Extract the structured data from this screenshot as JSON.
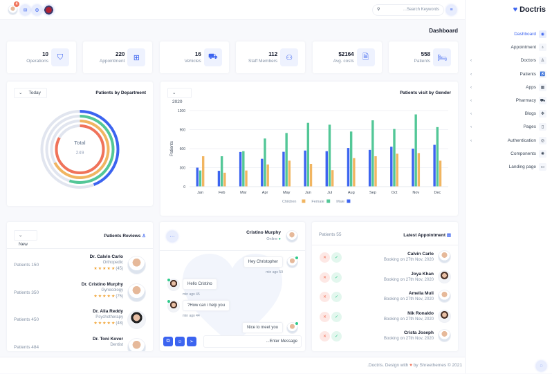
{
  "topbar": {
    "notification_count": "4",
    "search_placeholder": "...Search Keywords"
  },
  "brand": {
    "name": "Doctris"
  },
  "sidebar": {
    "items": [
      {
        "label": "Dashboard",
        "icon": "dashboard-icon",
        "glyph": "◉",
        "active": true,
        "chevron": false
      },
      {
        "label": "Appointment",
        "icon": "stethoscope-icon",
        "glyph": "♁",
        "chevron": false
      },
      {
        "label": "Doctors",
        "icon": "user-icon",
        "glyph": "♙",
        "chevron": true
      },
      {
        "label": "Patients",
        "icon": "wheelchair-icon",
        "glyph": "♿",
        "chevron": true
      },
      {
        "label": "Apps",
        "icon": "apps-icon",
        "glyph": "▦",
        "chevron": true
      },
      {
        "label": "Pharmacy",
        "icon": "cart-icon",
        "glyph": "⛟",
        "chevron": true
      },
      {
        "label": "Blogs",
        "icon": "flower-icon",
        "glyph": "✥",
        "chevron": true
      },
      {
        "label": "Pages",
        "icon": "file-icon",
        "glyph": "▯",
        "chevron": true
      },
      {
        "label": "Authentication",
        "icon": "login-icon",
        "glyph": "◎",
        "chevron": true
      },
      {
        "label": "Components",
        "icon": "settings-icon",
        "glyph": "✺",
        "chevron": false
      },
      {
        "label": "Landing page",
        "icon": "browser-icon",
        "glyph": "▭",
        "chevron": false
      }
    ]
  },
  "page_title": "Dashboard",
  "stats": [
    {
      "value": "10",
      "label": "Operations",
      "icon": "tooth-icon",
      "glyph": "⛉"
    },
    {
      "value": "220",
      "label": "Appointment",
      "icon": "medical-kit-icon",
      "glyph": "⊞"
    },
    {
      "value": "16",
      "label": "Vehicles",
      "icon": "ambulance-icon",
      "glyph": "⛟"
    },
    {
      "value": "112",
      "label": "Staff Members",
      "icon": "users-icon",
      "glyph": "⚇"
    },
    {
      "value": "$2164",
      "label": "Avg. costs",
      "icon": "invoice-icon",
      "glyph": "🗎"
    },
    {
      "value": "558",
      "label": "Patients",
      "icon": "bed-icon",
      "glyph": "🛏"
    }
  ],
  "department": {
    "title": "Patients by Department",
    "select": "Today",
    "center_label": "Total",
    "center_value": "249"
  },
  "gender": {
    "title": "Patients visit by Gender",
    "select": "2020"
  },
  "chart_data": [
    {
      "type": "radialBar",
      "values": [
        44,
        55,
        67,
        83
      ],
      "colors": [
        "#3c64f0",
        "#53c797",
        "#f1b561",
        "#f0735a"
      ],
      "track_color": "#e1e5ef",
      "center_label": "Total",
      "center_value": "249"
    },
    {
      "type": "bar",
      "ylabel": "Patients",
      "ylim": [
        0,
        1200
      ],
      "yticks": [
        0,
        300,
        600,
        900,
        1200
      ],
      "grid": true,
      "legend": "bottom",
      "categories": [
        "Jan",
        "Feb",
        "Mar",
        "Apr",
        "May",
        "Jun",
        "Jul",
        "Aug",
        "Sep",
        "Oct",
        "Nov",
        "Dec"
      ],
      "series": [
        {
          "name": "Male",
          "color": "#3c64f0",
          "values": [
            300,
            250,
            547,
            440,
            550,
            570,
            560,
            610,
            580,
            630,
            600,
            660
          ]
        },
        {
          "name": "Female",
          "color": "#53c797",
          "values": [
            255,
            480,
            560,
            760,
            847,
            1007,
            978,
            870,
            1047,
            910,
            1140,
            940
          ]
        },
        {
          "name": "Children",
          "color": "#f1b561",
          "values": [
            480,
            220,
            255,
            350,
            410,
            360,
            260,
            450,
            480,
            520,
            530,
            410
          ]
        }
      ]
    }
  ],
  "reviews": {
    "title": "Patients Reviews",
    "select": "New",
    "items": [
      {
        "name": "Dr. Calvin Carlo",
        "dept": "Orthopedic",
        "rating": 5,
        "count": "(45)",
        "patients": "Patients 150"
      },
      {
        "name": "Dr. Cristino Murphy",
        "dept": "Gynecology",
        "rating": 5,
        "count": "(75)",
        "patients": "Patients 350"
      },
      {
        "name": "Dr. Alia Reddy",
        "dept": "Psychotherapy",
        "rating": 5,
        "count": "(48)",
        "patients": "Patients 450"
      },
      {
        "name": "Dr. Toni Kover",
        "dept": "Dentist",
        "patients": "Patients 484"
      }
    ]
  },
  "chat": {
    "name": "Cristino Murphy",
    "status": "Online",
    "messages": [
      {
        "text": "Hey Christopher",
        "time": "min ago 59",
        "side": "right"
      },
      {
        "text": "Hello Cristino",
        "time": "min ago 45",
        "side": "left"
      },
      {
        "text": "?How can i help you",
        "time": "min ago 44",
        "side": "left"
      },
      {
        "text": "Nice to meet you",
        "side": "right"
      }
    ],
    "input_placeholder": "...Enter Message"
  },
  "appointments": {
    "title": "Latest Appointment",
    "count": "Patients 55",
    "items": [
      {
        "name": "Calvin Carlo",
        "date": "Booking on 27th Nov, 2020"
      },
      {
        "name": "Joya Khan",
        "date": "Booking on 27th Nov, 2020"
      },
      {
        "name": "Amelia Muli",
        "date": "Booking on 27th Nov, 2020"
      },
      {
        "name": "Nik Ronaldo",
        "date": "Booking on 27th Nov, 2020"
      },
      {
        "name": "Crista Joseph",
        "date": "Booking on 27th Nov, 2020"
      }
    ]
  },
  "footer": {
    "before": ".Doctris. Design with",
    "after": "by Shreethemes © 2021"
  },
  "colors": {
    "primary": "#3c64f0",
    "success": "#2eca8b",
    "danger": "#f0735a",
    "warning": "#f1a334"
  }
}
